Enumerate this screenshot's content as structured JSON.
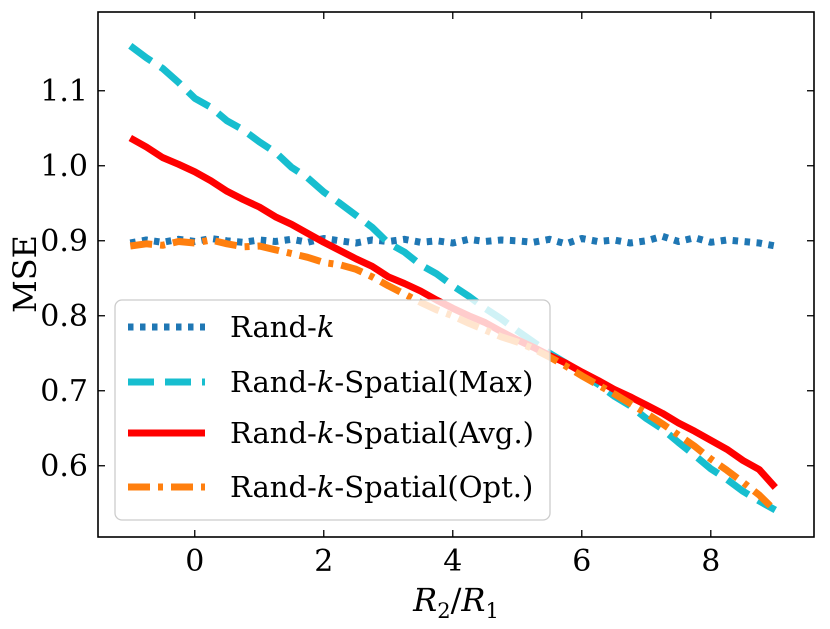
{
  "chart_data": {
    "type": "line",
    "title": "",
    "xlabel": "R_2/R_1",
    "xlabel_parts": [
      "R",
      "2",
      "/",
      "R",
      "1"
    ],
    "ylabel": "MSE",
    "xlim": [
      -1.5,
      9.6
    ],
    "ylim": [
      0.505,
      1.205
    ],
    "xticks": [
      0,
      2,
      4,
      6,
      8
    ],
    "xtick_labels": [
      "0",
      "2",
      "4",
      "6",
      "8"
    ],
    "yticks": [
      0.6,
      0.7,
      0.8,
      0.9,
      1.0,
      1.1
    ],
    "ytick_labels": [
      "0.6",
      "0.7",
      "0.8",
      "0.9",
      "1.0",
      "1.1"
    ],
    "grid": false,
    "legend_position": "lower-left",
    "x": [
      -1.0,
      -0.75,
      -0.5,
      -0.25,
      0.0,
      0.25,
      0.5,
      0.75,
      1.0,
      1.25,
      1.5,
      1.75,
      2.0,
      2.25,
      2.5,
      2.75,
      3.0,
      3.25,
      3.5,
      3.75,
      4.0,
      4.25,
      4.5,
      4.75,
      5.0,
      5.25,
      5.5,
      5.75,
      6.0,
      6.25,
      6.5,
      6.75,
      7.0,
      7.25,
      7.5,
      7.75,
      8.0,
      8.25,
      8.5,
      8.75,
      9.0
    ],
    "series": [
      {
        "name": "Rand-k",
        "legend_prefix": "Rand-",
        "legend_k": "k",
        "legend_suffix": "",
        "color": "#1f77b4",
        "style": "dotted",
        "values": [
          0.897,
          0.901,
          0.898,
          0.902,
          0.899,
          0.903,
          0.9,
          0.898,
          0.901,
          0.899,
          0.902,
          0.898,
          0.903,
          0.9,
          0.897,
          0.901,
          0.899,
          0.902,
          0.898,
          0.9,
          0.897,
          0.902,
          0.899,
          0.901,
          0.9,
          0.898,
          0.902,
          0.896,
          0.903,
          0.899,
          0.901,
          0.897,
          0.9,
          0.906,
          0.899,
          0.904,
          0.898,
          0.901,
          0.899,
          0.897,
          0.893
        ]
      },
      {
        "name": "Rand-k-Spatial(Max)",
        "legend_prefix": "Rand-",
        "legend_k": "k",
        "legend_suffix": "-Spatial(Max)",
        "color": "#17becf",
        "style": "dashed",
        "values": [
          1.16,
          1.144,
          1.13,
          1.111,
          1.09,
          1.078,
          1.06,
          1.048,
          1.032,
          1.018,
          0.998,
          0.984,
          0.965,
          0.95,
          0.934,
          0.918,
          0.897,
          0.885,
          0.868,
          0.856,
          0.84,
          0.826,
          0.81,
          0.796,
          0.78,
          0.765,
          0.75,
          0.737,
          0.722,
          0.709,
          0.693,
          0.68,
          0.663,
          0.649,
          0.631,
          0.614,
          0.596,
          0.582,
          0.566,
          0.553,
          0.541
        ]
      },
      {
        "name": "Rand-k-Spatial(Avg.)",
        "legend_prefix": "Rand-",
        "legend_k": "k",
        "legend_suffix": "-Spatial(Avg.)",
        "color": "#ff0000",
        "style": "solid",
        "values": [
          1.037,
          1.025,
          1.011,
          1.002,
          0.992,
          0.98,
          0.966,
          0.955,
          0.945,
          0.932,
          0.922,
          0.91,
          0.898,
          0.887,
          0.876,
          0.866,
          0.852,
          0.843,
          0.833,
          0.821,
          0.81,
          0.8,
          0.791,
          0.779,
          0.768,
          0.758,
          0.747,
          0.737,
          0.725,
          0.714,
          0.702,
          0.692,
          0.681,
          0.67,
          0.657,
          0.646,
          0.634,
          0.622,
          0.607,
          0.595,
          0.571
        ]
      },
      {
        "name": "Rand-k-Spatial(Opt.)",
        "legend_prefix": "Rand-",
        "legend_k": "k",
        "legend_suffix": "-Spatial(Opt.)",
        "color": "#ff7f0e",
        "style": "dashdot",
        "values": [
          0.893,
          0.896,
          0.894,
          0.899,
          0.897,
          0.901,
          0.896,
          0.892,
          0.893,
          0.888,
          0.883,
          0.878,
          0.871,
          0.868,
          0.862,
          0.852,
          0.84,
          0.829,
          0.818,
          0.808,
          0.8,
          0.79,
          0.781,
          0.772,
          0.765,
          0.756,
          0.745,
          0.733,
          0.72,
          0.708,
          0.696,
          0.683,
          0.67,
          0.656,
          0.641,
          0.626,
          0.609,
          0.594,
          0.578,
          0.561,
          0.54
        ]
      }
    ]
  }
}
